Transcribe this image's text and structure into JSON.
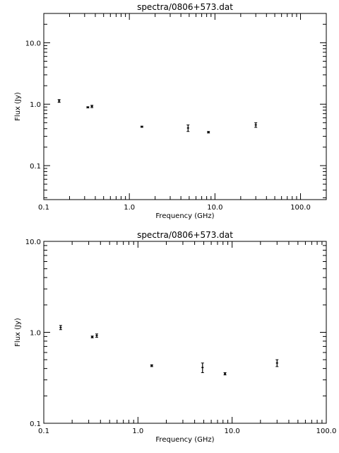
{
  "chart_data": [
    {
      "type": "scatter",
      "title": "spectra/0806+573.dat",
      "xlabel": "Frequency (GHz)",
      "ylabel": "Flux (Jy)",
      "xscale": "log",
      "yscale": "log",
      "xlim": [
        0.1,
        200
      ],
      "ylim": [
        0.028,
        30
      ],
      "xticks": [
        0.1,
        1.0,
        10.0,
        100.0
      ],
      "xtick_labels": [
        "0.1",
        "1.0",
        "10.0",
        "100.0"
      ],
      "yticks": [
        0.1,
        1.0,
        10.0
      ],
      "ytick_labels": [
        "0.1",
        "1.0",
        "10.0"
      ],
      "grid": false,
      "points": [
        {
          "x": 0.151,
          "y": 1.13,
          "err": 0.06
        },
        {
          "x": 0.327,
          "y": 0.89,
          "err": 0.02
        },
        {
          "x": 0.365,
          "y": 0.92,
          "err": 0.04
        },
        {
          "x": 1.4,
          "y": 0.43,
          "err": 0.01
        },
        {
          "x": 4.85,
          "y": 0.41,
          "err": 0.05
        },
        {
          "x": 8.4,
          "y": 0.35,
          "err": 0.01
        },
        {
          "x": 30.0,
          "y": 0.46,
          "err": 0.04
        }
      ]
    },
    {
      "type": "scatter",
      "title": "spectra/0806+573.dat",
      "xlabel": "Frequency (GHz)",
      "ylabel": "Flux (Jy)",
      "xscale": "log",
      "yscale": "log",
      "xlim": [
        0.1,
        100
      ],
      "ylim": [
        0.1,
        10
      ],
      "xticks": [
        0.1,
        1.0,
        10.0,
        100.0
      ],
      "xtick_labels": [
        "0.1",
        "1.0",
        "10.0",
        "100.0"
      ],
      "yticks": [
        0.1,
        1.0,
        10.0
      ],
      "ytick_labels": [
        "0.1",
        "1.0",
        "10.0"
      ],
      "grid": false,
      "points": [
        {
          "x": 0.151,
          "y": 1.13,
          "err": 0.06
        },
        {
          "x": 0.327,
          "y": 0.89,
          "err": 0.02
        },
        {
          "x": 0.365,
          "y": 0.92,
          "err": 0.04
        },
        {
          "x": 1.4,
          "y": 0.43,
          "err": 0.01
        },
        {
          "x": 4.85,
          "y": 0.41,
          "err": 0.05
        },
        {
          "x": 8.4,
          "y": 0.35,
          "err": 0.01
        },
        {
          "x": 30.0,
          "y": 0.46,
          "err": 0.04
        }
      ]
    }
  ]
}
